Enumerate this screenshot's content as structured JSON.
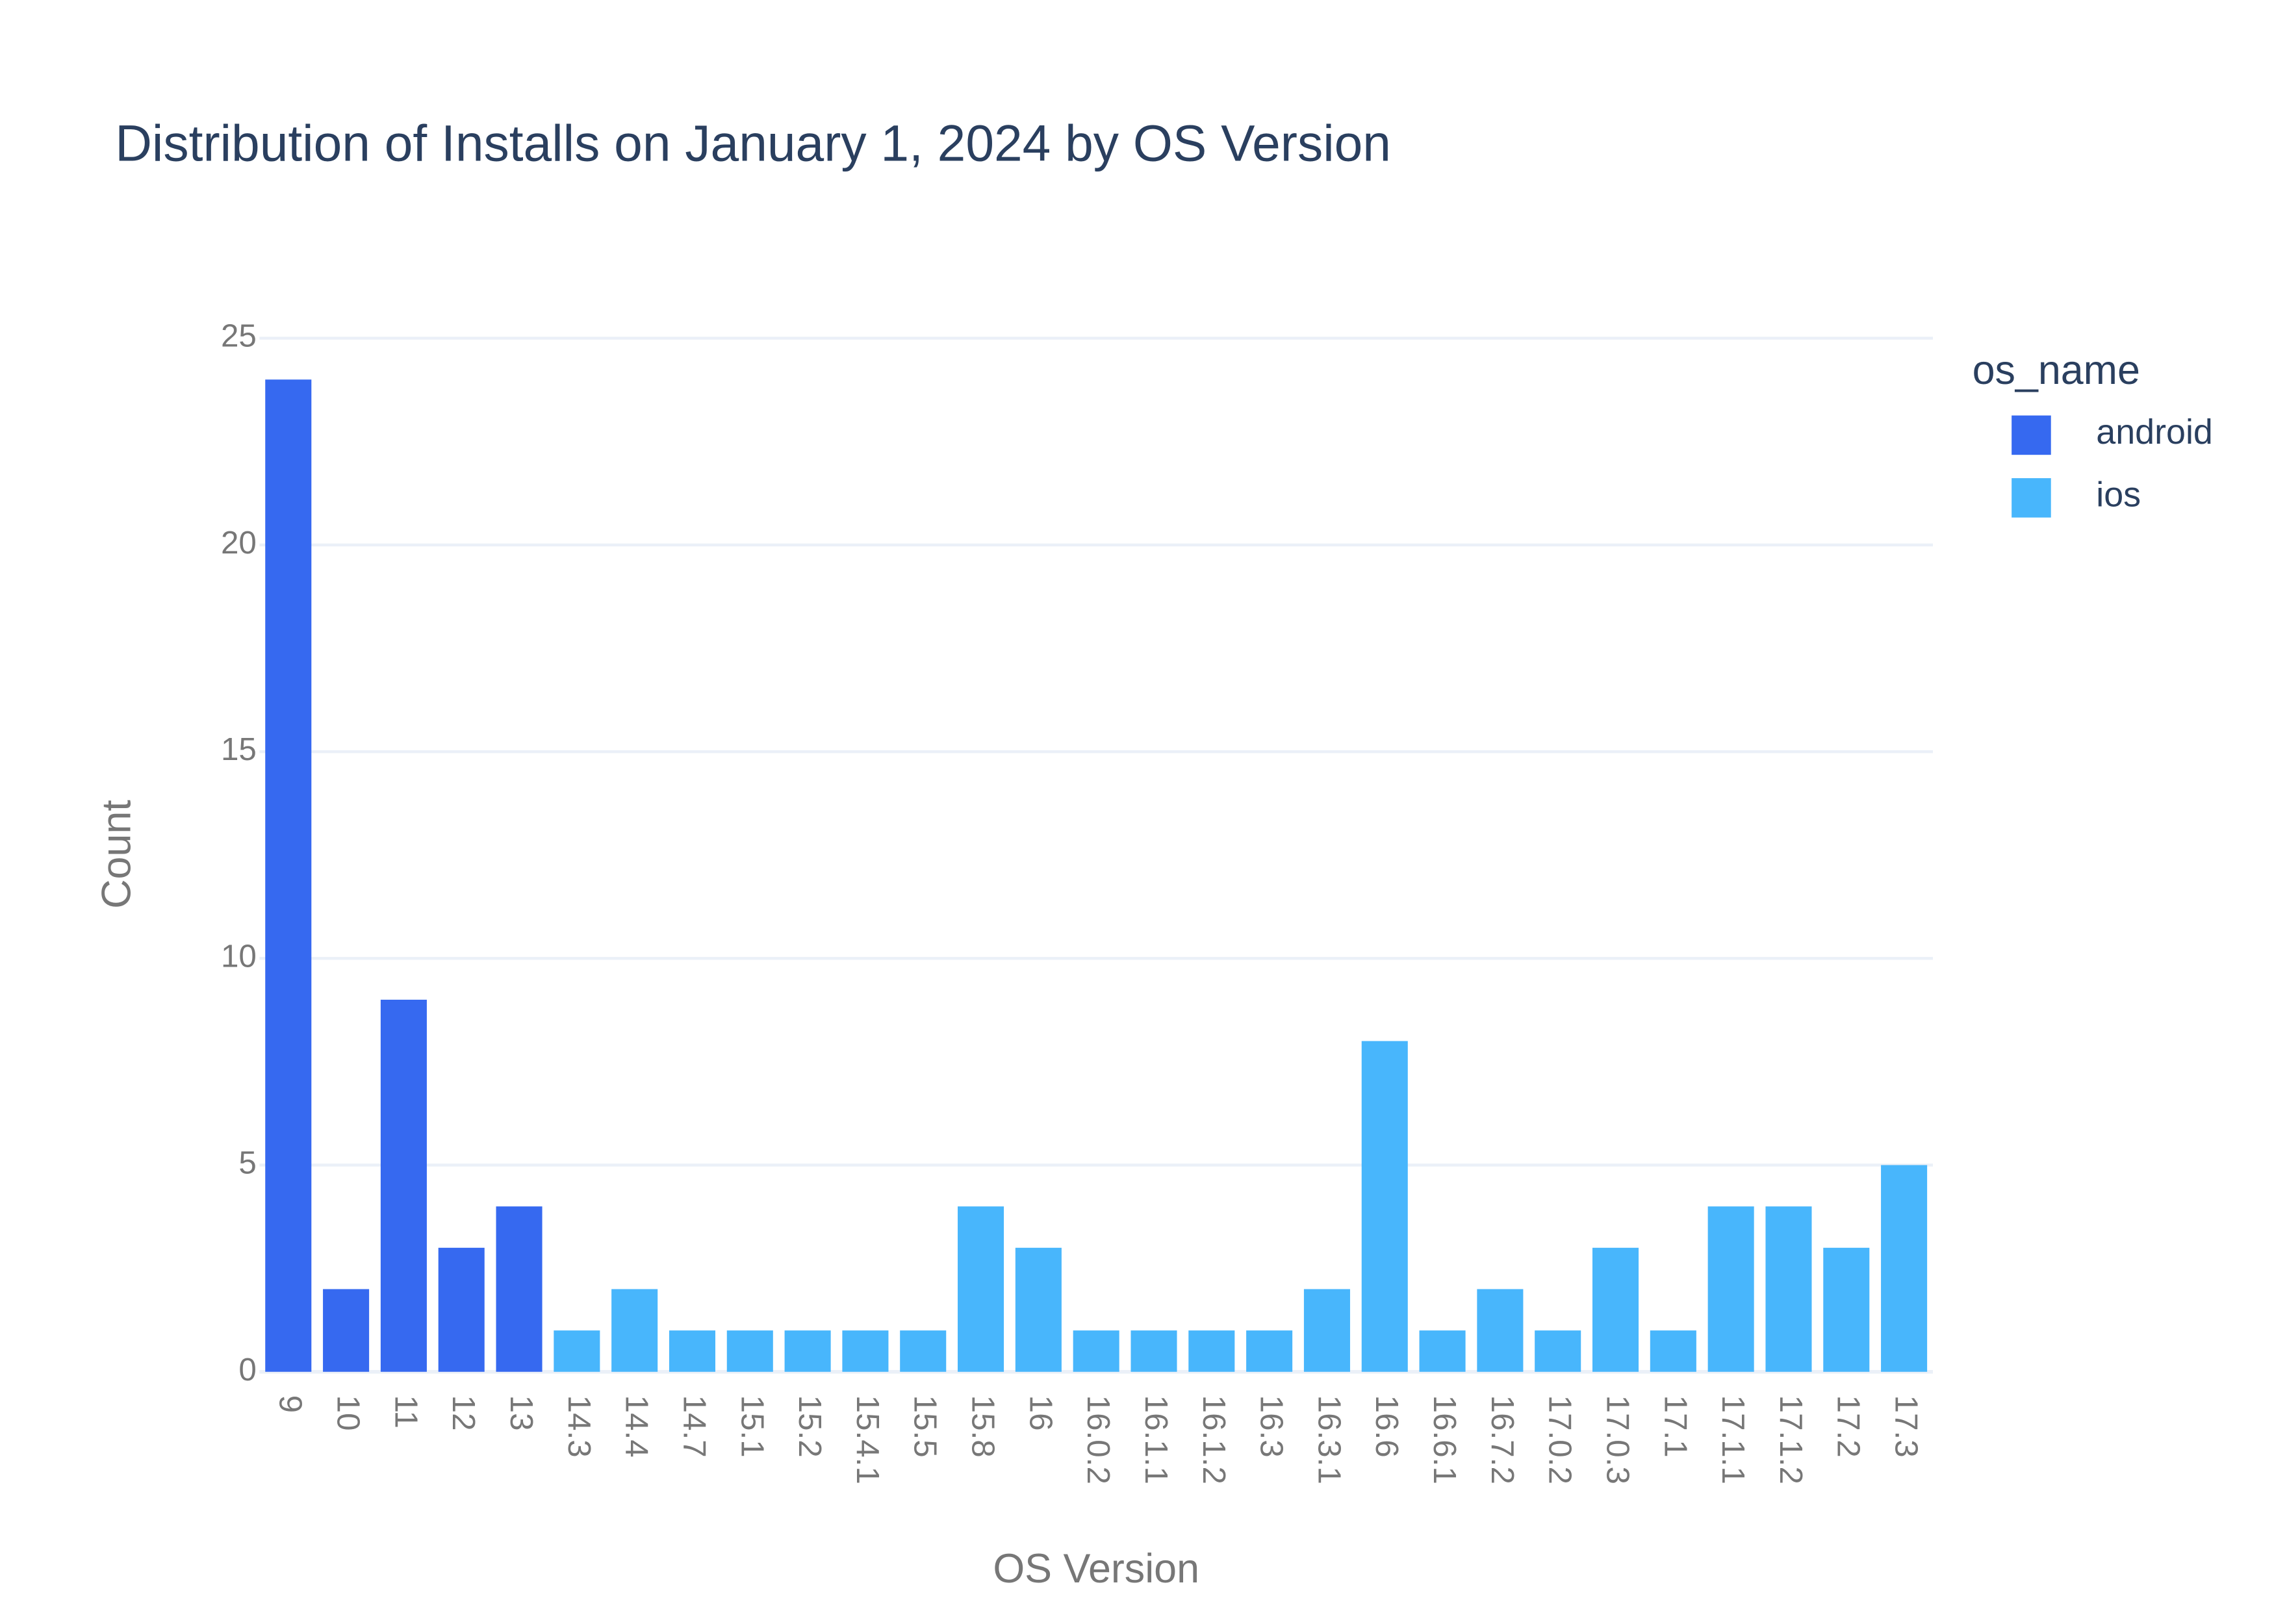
{
  "chart_data": {
    "type": "bar",
    "title": "Distribution of Installs on January 1, 2024 by OS Version",
    "x_label": "OS Version",
    "y_label": "Count",
    "legend_title": "os_name",
    "legend_position": "right",
    "categories": [
      "9",
      "10",
      "11",
      "12",
      "13",
      "14.3",
      "14.4",
      "14.7",
      "15.1",
      "15.2",
      "15.4.1",
      "15.5",
      "15.8",
      "16",
      "16.0.2",
      "16.1.1",
      "16.1.2",
      "16.3",
      "16.3.1",
      "16.6",
      "16.6.1",
      "16.7.2",
      "17.0.2",
      "17.0.3",
      "17.1",
      "17.1.1",
      "17.1.2",
      "17.2",
      "17.3"
    ],
    "series": [
      {
        "name": "android",
        "color": "#3669f0",
        "values": [
          24,
          2,
          9,
          3,
          4,
          null,
          null,
          null,
          null,
          null,
          null,
          null,
          null,
          null,
          null,
          null,
          null,
          null,
          null,
          null,
          null,
          null,
          null,
          null,
          null,
          null,
          null,
          null,
          null
        ]
      },
      {
        "name": "ios",
        "color": "#48b6fc",
        "values": [
          null,
          null,
          null,
          null,
          null,
          1,
          2,
          1,
          1,
          1,
          1,
          1,
          4,
          3,
          1,
          1,
          1,
          1,
          2,
          8,
          1,
          2,
          1,
          3,
          1,
          4,
          4,
          3,
          5
        ]
      }
    ],
    "ylim": [
      0,
      25
    ],
    "yticks": [
      0,
      5,
      10,
      15,
      20,
      25
    ],
    "grid": true
  }
}
